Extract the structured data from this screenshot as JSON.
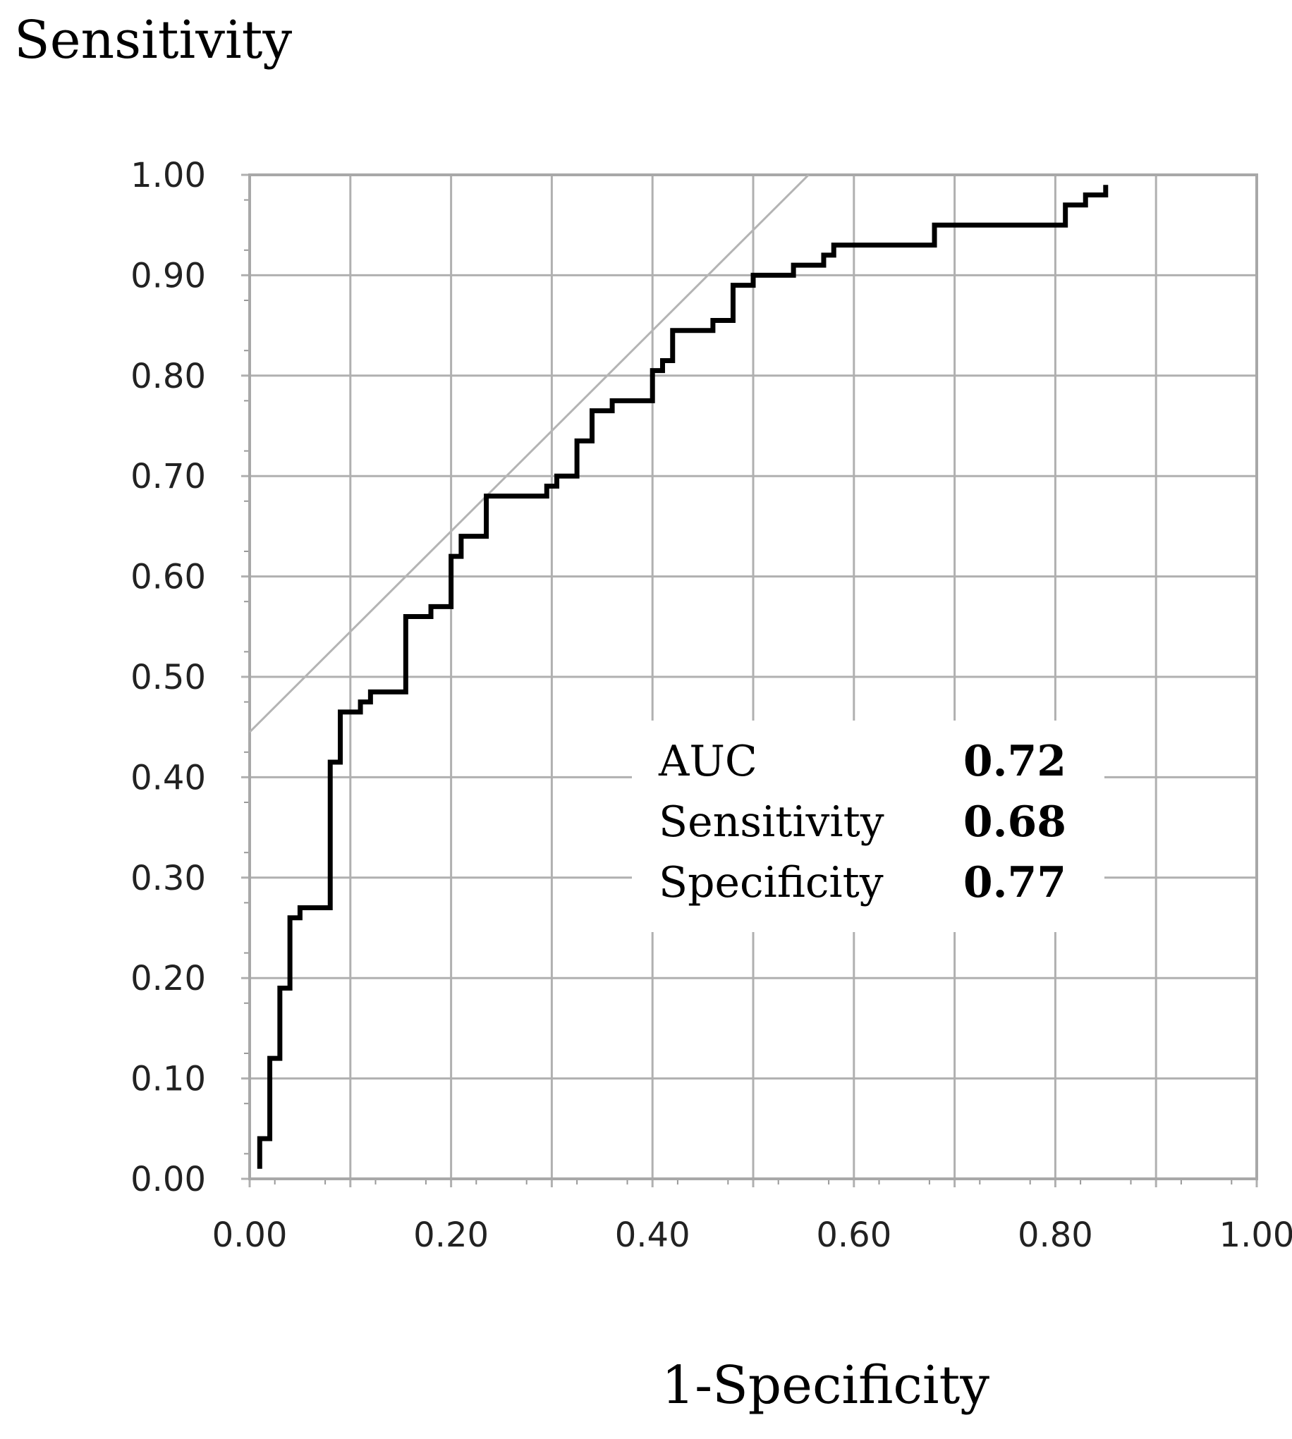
{
  "chart_data": {
    "type": "line",
    "ylabel": "Sensitivity",
    "xlabel": "1-Specificity",
    "xlim": [
      0,
      1
    ],
    "ylim": [
      0,
      1
    ],
    "grid": true,
    "xticks": [
      "0.00",
      "0.20",
      "0.40",
      "0.60",
      "0.80",
      "1.00"
    ],
    "yticks": [
      "0.00",
      "0.10",
      "0.20",
      "0.30",
      "0.40",
      "0.50",
      "0.60",
      "0.70",
      "0.80",
      "0.90",
      "1.00"
    ],
    "series": [
      {
        "values_x": [
          0.01,
          0.01,
          0.02,
          0.02,
          0.03,
          0.03,
          0.04,
          0.04,
          0.05,
          0.05,
          0.06,
          0.06,
          0.08,
          0.08,
          0.09,
          0.09,
          0.11,
          0.11,
          0.12,
          0.12,
          0.13,
          0.13,
          0.155,
          0.155,
          0.18,
          0.18,
          0.2,
          0.2,
          0.21,
          0.21,
          0.235,
          0.235,
          0.295,
          0.295,
          0.305,
          0.305,
          0.325,
          0.325,
          0.34,
          0.34,
          0.36,
          0.36,
          0.4,
          0.4,
          0.41,
          0.41,
          0.42,
          0.42,
          0.46,
          0.46,
          0.48,
          0.48,
          0.5,
          0.5,
          0.54,
          0.54,
          0.57,
          0.57,
          0.58,
          0.58,
          0.68,
          0.68,
          0.81,
          0.81,
          0.83,
          0.83,
          0.85,
          0.85
        ],
        "values_y": [
          0.01,
          0.04,
          0.04,
          0.12,
          0.12,
          0.19,
          0.19,
          0.26,
          0.26,
          0.27,
          0.27,
          0.27,
          0.27,
          0.415,
          0.415,
          0.465,
          0.465,
          0.475,
          0.475,
          0.485,
          0.485,
          0.485,
          0.485,
          0.56,
          0.56,
          0.57,
          0.57,
          0.62,
          0.62,
          0.64,
          0.64,
          0.68,
          0.68,
          0.69,
          0.69,
          0.7,
          0.7,
          0.735,
          0.735,
          0.765,
          0.765,
          0.775,
          0.775,
          0.805,
          0.805,
          0.815,
          0.815,
          0.845,
          0.845,
          0.855,
          0.855,
          0.89,
          0.89,
          0.9,
          0.9,
          0.91,
          0.91,
          0.92,
          0.92,
          0.93,
          0.93,
          0.95,
          0.95,
          0.97,
          0.97,
          0.98,
          0.98,
          0.99
        ]
      },
      {
        "values_x": [
          0,
          0.555
        ],
        "values_y": [
          0.445,
          1.0
        ]
      }
    ],
    "annotation": {
      "rows": [
        {
          "label": "AUC",
          "value": "0.72"
        },
        {
          "label": "Sensitivity",
          "value": "0.68"
        },
        {
          "label": "Specificity",
          "value": "0.77"
        }
      ]
    }
  }
}
